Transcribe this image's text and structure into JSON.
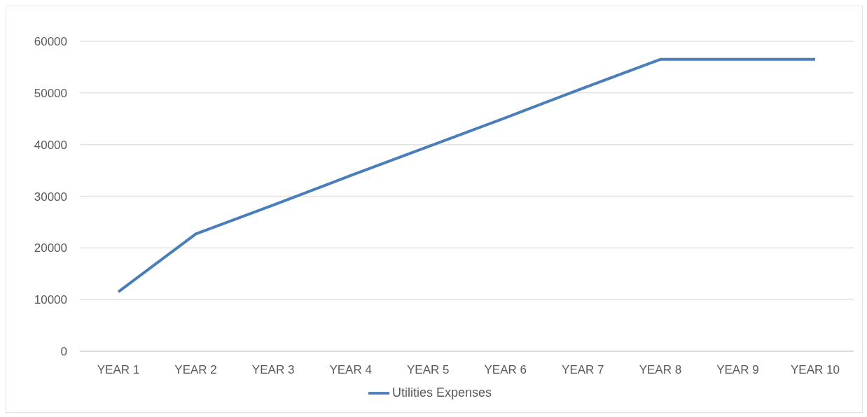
{
  "chart_data": {
    "type": "line",
    "categories": [
      "YEAR 1",
      "YEAR 2",
      "YEAR 3",
      "YEAR 4",
      "YEAR 5",
      "YEAR 6",
      "YEAR 7",
      "YEAR 8",
      "YEAR 9",
      "YEAR 10"
    ],
    "series": [
      {
        "name": "Utilities Expenses",
        "color": "#4a7ebb",
        "values": [
          11500,
          22700,
          28300,
          34000,
          39600,
          45200,
          50900,
          56500,
          56500,
          56500
        ]
      }
    ],
    "ylim": [
      0,
      60000
    ],
    "yticks": [
      0,
      10000,
      20000,
      30000,
      40000,
      50000,
      60000
    ],
    "grid": "y",
    "legend": "bottom",
    "marker": "none",
    "line_style": "solid"
  }
}
